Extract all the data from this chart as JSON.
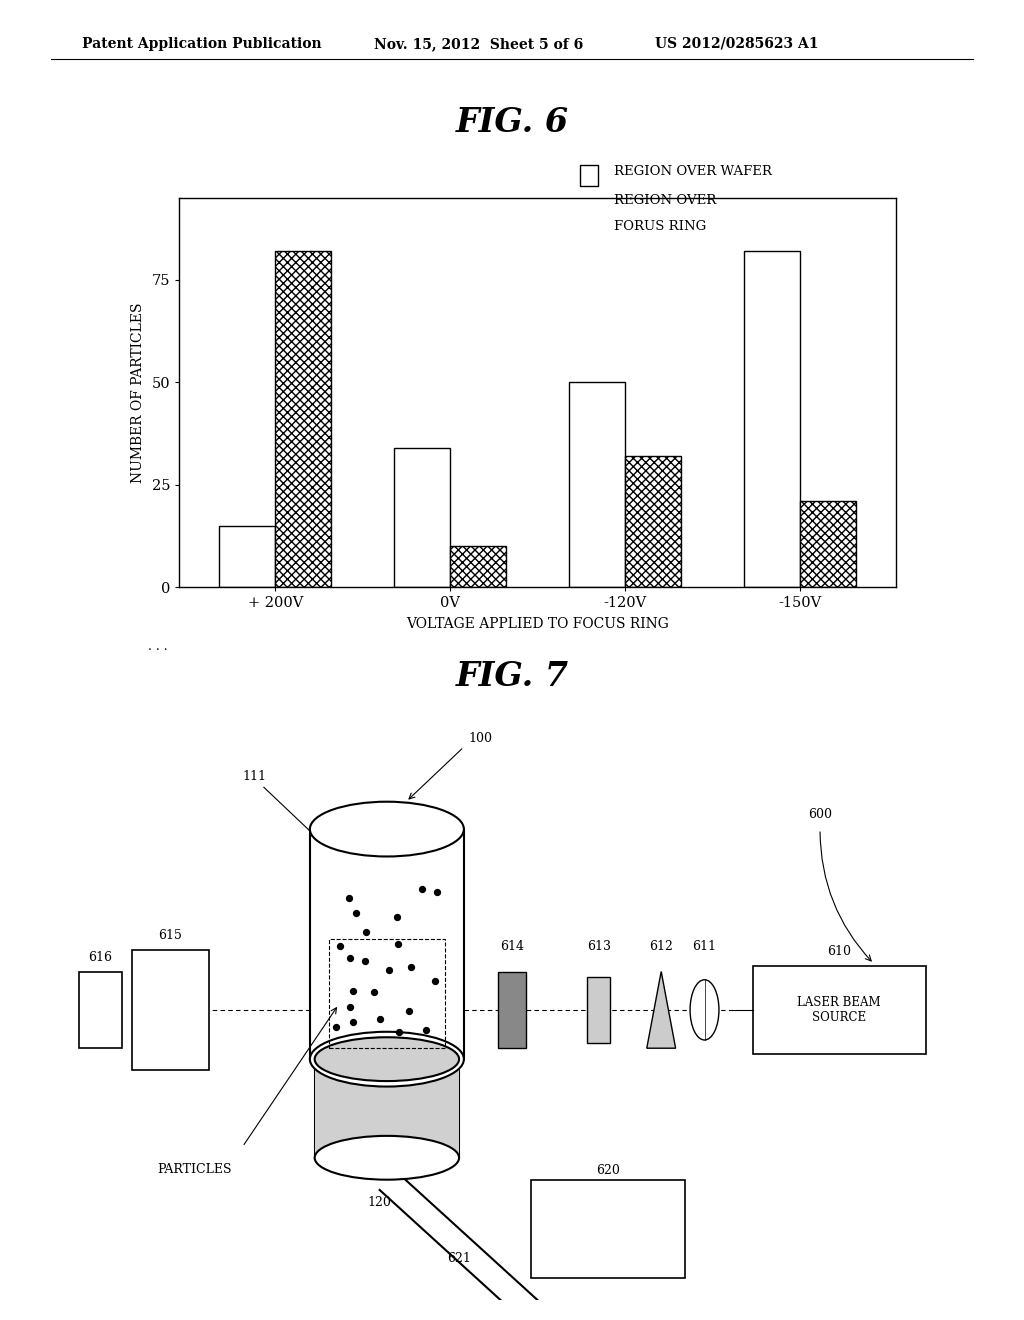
{
  "header_left": "Patent Application Publication",
  "header_mid": "Nov. 15, 2012  Sheet 5 of 6",
  "header_right": "US 2012/0285623 A1",
  "fig6_title": "FIG. 6",
  "legend_label1": "REGION OVER WAFER",
  "legend_label2": "REGION OVER\nFORUS RING",
  "categories": [
    "+ 200V",
    "0V",
    "-120V",
    "-150V"
  ],
  "wafer_values": [
    15,
    34,
    50,
    82
  ],
  "ring_values": [
    82,
    10,
    32,
    21
  ],
  "ylabel": "NUMBER OF PARTICLES",
  "xlabel": "VOLTAGE APPLIED TO FOCUS RING",
  "ylim": [
    0,
    95
  ],
  "yticks": [
    0,
    25,
    50,
    75
  ],
  "fig7_title": "FIG. 7",
  "background_color": "#ffffff"
}
